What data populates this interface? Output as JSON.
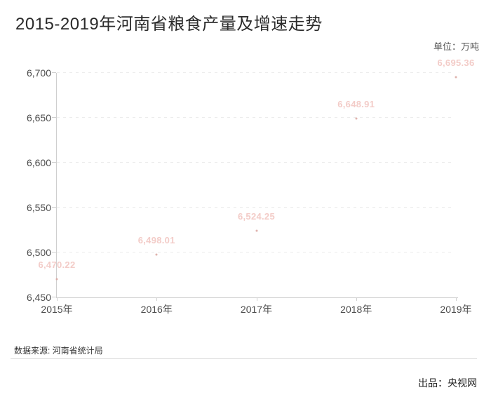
{
  "header": {
    "title": "2015-2019年河南省粮食产量及增速走势",
    "unit_label": "单位：万吨"
  },
  "footer": {
    "source_label": "数据来源: 河南省统计局",
    "producer_label": "出品：央视网"
  },
  "chart_data": {
    "type": "scatter",
    "title": "2015-2019年河南省粮食产量及增速走势",
    "unit": "万吨",
    "categories": [
      "2015年",
      "2016年",
      "2017年",
      "2018年",
      "2019年"
    ],
    "series": [
      {
        "name": "粮食产量",
        "values": [
          6470.22,
          6498.01,
          6524.25,
          6648.91,
          6695.36
        ],
        "point_labels": [
          "6,470.22",
          "6,498.01",
          "6,524.25",
          "6,648.91",
          "6,695.36"
        ]
      }
    ],
    "ylim": [
      6450,
      6700
    ],
    "yticks": [
      "6,450",
      "6,500",
      "6,550",
      "6,600",
      "6,650",
      "6,700"
    ],
    "grid": "horizontal-dashed",
    "legend": "none",
    "colors": {
      "point": "#d9a49f",
      "point_label": "#f3ccc8",
      "axis": "#cfcfcf",
      "gridline": "#ececec",
      "tick_text": "#4d4d4d"
    }
  }
}
